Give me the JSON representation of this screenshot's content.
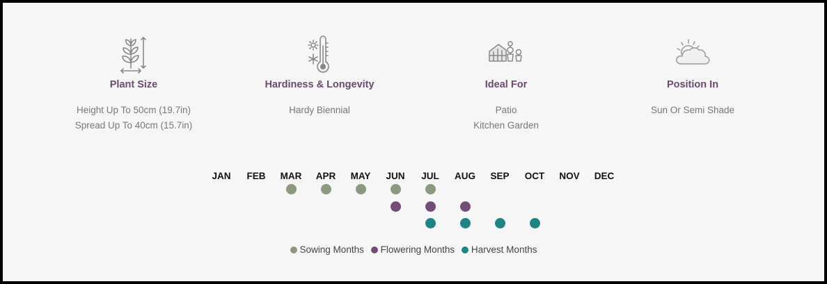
{
  "features": [
    {
      "icon": "plant-size-icon",
      "title": "Plant Size",
      "lines": [
        "Height Up To 50cm (19.7in)",
        "Spread Up To 40cm (15.7in)"
      ]
    },
    {
      "icon": "thermometer-icon",
      "title": "Hardiness & Longevity",
      "lines": [
        "Hardy Biennial"
      ]
    },
    {
      "icon": "greenhouse-pots-icon",
      "title": "Ideal For",
      "lines": [
        "Patio",
        "Kitchen Garden"
      ]
    },
    {
      "icon": "sun-cloud-icon",
      "title": "Position In",
      "lines": [
        "Sun Or Semi Shade"
      ]
    }
  ],
  "calendar": {
    "months": [
      "JAN",
      "FEB",
      "MAR",
      "APR",
      "MAY",
      "JUN",
      "JUL",
      "AUG",
      "SEP",
      "OCT",
      "NOV",
      "DEC"
    ],
    "rows": [
      {
        "key": "sowing",
        "color": "#8b9980",
        "months": [
          "MAR",
          "APR",
          "MAY",
          "JUN",
          "JUL"
        ]
      },
      {
        "key": "flowering",
        "color": "#744c78",
        "months": [
          "JUN",
          "JUL",
          "AUG"
        ]
      },
      {
        "key": "harvest",
        "color": "#1f8384",
        "months": [
          "JUL",
          "AUG",
          "SEP",
          "OCT"
        ]
      }
    ]
  },
  "legend": [
    {
      "label": "Sowing Months",
      "color": "#8b9980"
    },
    {
      "label": "Flowering Months",
      "color": "#744c78"
    },
    {
      "label": "Harvest Months",
      "color": "#1f8384"
    }
  ]
}
